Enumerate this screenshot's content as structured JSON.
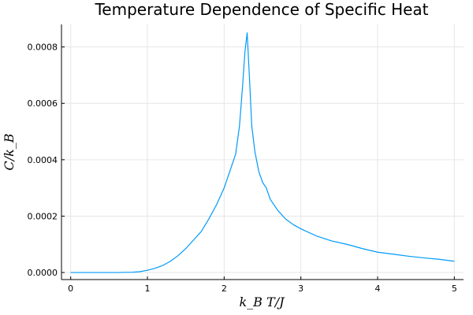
{
  "chart_data": {
    "type": "line",
    "title": "Temperature Dependence of Specific Heat",
    "xlabel": "k_B T/J",
    "ylabel": "C/k_B",
    "xlim": [
      -0.12,
      5.12
    ],
    "ylim": [
      -2.5e-05,
      0.00088
    ],
    "grid": true,
    "legend": "none",
    "line_color": "#009AFA",
    "x_ticks": [
      {
        "value": 0,
        "label": "0"
      },
      {
        "value": 1,
        "label": "1"
      },
      {
        "value": 2,
        "label": "2"
      },
      {
        "value": 3,
        "label": "3"
      },
      {
        "value": 4,
        "label": "4"
      },
      {
        "value": 5,
        "label": "5"
      }
    ],
    "y_ticks": [
      {
        "value": 0.0,
        "label": "0.0000"
      },
      {
        "value": 0.0002,
        "label": "0.0002"
      },
      {
        "value": 0.0004,
        "label": "0.0004"
      },
      {
        "value": 0.0006,
        "label": "0.0006"
      },
      {
        "value": 0.0008,
        "label": "0.0008"
      }
    ],
    "series": [
      {
        "x": [
          0.0,
          0.2,
          0.4,
          0.6,
          0.8,
          0.9,
          1.0,
          1.1,
          1.2,
          1.3,
          1.4,
          1.5,
          1.6,
          1.7,
          1.8,
          1.9,
          2.0,
          2.05,
          2.1,
          2.15,
          2.2,
          2.24,
          2.27,
          2.3,
          2.33,
          2.36,
          2.4,
          2.45,
          2.5,
          2.55,
          2.6,
          2.7,
          2.8,
          2.9,
          3.0,
          3.2,
          3.4,
          3.6,
          3.8,
          4.0,
          4.2,
          4.4,
          4.6,
          4.8,
          5.0
        ],
        "y": [
          0.0,
          0.0,
          0.0,
          0.0,
          1e-06,
          3e-06,
          8e-06,
          1.5e-05,
          2.5e-05,
          4e-05,
          6e-05,
          8.5e-05,
          0.000115,
          0.000145,
          0.00019,
          0.00024,
          0.0003,
          0.00034,
          0.00038,
          0.00042,
          0.00052,
          0.00066,
          0.00078,
          0.00085,
          0.00069,
          0.00052,
          0.00043,
          0.00036,
          0.00032,
          0.0003,
          0.00026,
          0.00022,
          0.00019,
          0.00017,
          0.000155,
          0.00013,
          0.000112,
          0.0001,
          8.5e-05,
          7.2e-05,
          6.5e-05,
          5.8e-05,
          5.2e-05,
          4.7e-05,
          4e-05
        ]
      }
    ]
  }
}
